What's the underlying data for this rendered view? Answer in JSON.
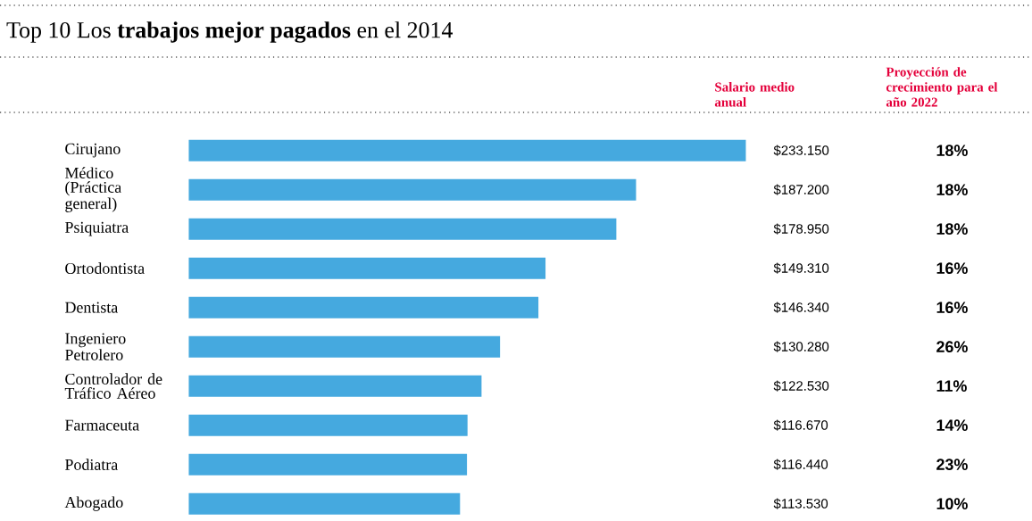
{
  "chart_data": {
    "type": "bar",
    "orientation": "horizontal",
    "title": "Top 10 Los **trabajos mejor pagados** en el 2014",
    "categories": [
      "Cirujano",
      "Médico (Práctica general)",
      "Psiquiatra",
      "Ortodontista",
      "Dentista",
      "Ingeniero Petrolero",
      "Controlador de Tráfico Aéreo",
      "Farmaceuta",
      "Podiatra",
      "Abogado"
    ],
    "values": [
      233150,
      187200,
      178950,
      149310,
      146340,
      130280,
      122530,
      116670,
      116440,
      113530
    ],
    "value_labels": [
      "$233.150",
      "$187.200",
      "$178.950",
      "$149.310",
      "$146.340",
      "$130.280",
      "$122.530",
      "$116.670",
      "$116.440",
      "$113.530"
    ],
    "color": "#45a9df",
    "annotations": [
      "Salario medio anual",
      "Proyección de crecimiento para el año 2022",
      "18%",
      "18%",
      "18%",
      "16%",
      "16%",
      "26%",
      "11%",
      "14%",
      "23%",
      "10%"
    ]
  }
}
